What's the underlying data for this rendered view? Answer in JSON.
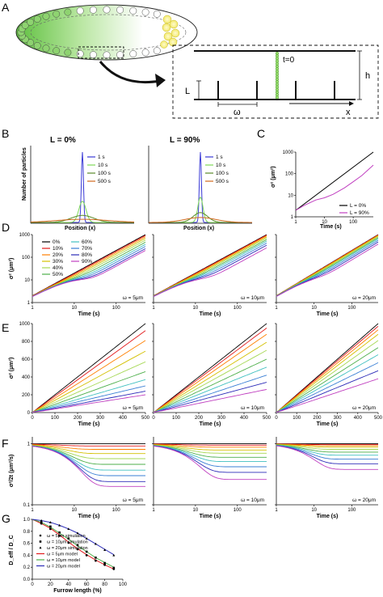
{
  "panels": {
    "a": "A",
    "b": "B",
    "c": "C",
    "d": "D",
    "e": "E",
    "f": "F",
    "g": "G"
  },
  "schematic": {
    "t0": "t=0",
    "L": "L",
    "h": "h",
    "omega": "ω",
    "x": "x"
  },
  "panel_b": {
    "ylabel": "Number of particles",
    "xlabel": "Position (x)",
    "left_title": "L = 0%",
    "right_title": "L = 90%",
    "legend": [
      "1 s",
      "10 s",
      "100 s",
      "500 s"
    ],
    "colors": [
      "#3b3bd6",
      "#7ed957",
      "#5a8a2a",
      "#d2691e"
    ]
  },
  "panel_c": {
    "ylabel": "σ² (μm²)",
    "xlabel": "Time (s)",
    "yticks": [
      "1000",
      "100",
      "10",
      "1"
    ],
    "xticks": [
      "1",
      "10",
      "100"
    ],
    "legend": [
      "L = 0%",
      "L = 90%"
    ]
  },
  "panel_d": {
    "ylabel": "σ² (μm²)",
    "xlabel": "Time (s)",
    "yticks": [
      "1000",
      "100",
      "10",
      "1"
    ],
    "xticks": [
      "1",
      "10",
      "100"
    ],
    "legend_col1": [
      "0%",
      "10%",
      "20%",
      "30%",
      "40%",
      "50%"
    ],
    "legend_col2": [
      "60%",
      "70%",
      "80%",
      "90%"
    ],
    "omegas": [
      "ω = 5μm",
      "ω = 10μm",
      "ω = 20μm"
    ]
  },
  "panel_e": {
    "ylabel": "σ² (μm²)",
    "xlabel": "Time (s)",
    "yticks": [
      "1000",
      "800",
      "600",
      "400",
      "200",
      "0"
    ],
    "xticks": [
      "0",
      "100",
      "200",
      "300",
      "400",
      "500"
    ],
    "omegas": [
      "ω = 5μm",
      "ω = 10μm",
      "ω = 20μm"
    ]
  },
  "panel_f": {
    "ylabel": "σ²/2t (μm²/s)",
    "xlabel": "Time (s)",
    "yticks": [
      "1",
      "0.1"
    ],
    "xticks": [
      "1",
      "10",
      "100"
    ],
    "omegas": [
      "ω = 5μm",
      "ω = 10μm",
      "ω = 20μm"
    ]
  },
  "panel_g": {
    "ylabel": "D_eff / D_C",
    "xlabel": "Furrow length (%)",
    "yticks": [
      "1.0",
      "0.8",
      "0.6",
      "0.4",
      "0.2",
      "0.0"
    ],
    "xticks": [
      "0",
      "20",
      "40",
      "60",
      "80",
      "100"
    ],
    "legend": [
      "ω = 5μm simulation",
      "ω = 10μm simulation",
      "ω = 20μm simulation",
      "ω = 5μm model",
      "ω = 10μm model",
      "ω = 20μm model"
    ]
  },
  "series_colors": [
    "#000000",
    "#e31a1c",
    "#ff7f00",
    "#d4c000",
    "#a6d854",
    "#4daf4a",
    "#41c0c0",
    "#3a7fd5",
    "#2b2bb8",
    "#c040c0"
  ],
  "model_colors": [
    "#e31a1c",
    "#4daf4a",
    "#2b2bb8"
  ],
  "chart_data": [
    {
      "type": "line",
      "panel": "B-left",
      "title": "L = 0%",
      "xlabel": "Position (x)",
      "ylabel": "Number of particles",
      "series": [
        {
          "name": "1 s",
          "peak": 1.0,
          "width": 0.02
        },
        {
          "name": "10 s",
          "peak": 0.3,
          "width": 0.07
        },
        {
          "name": "100 s",
          "peak": 0.1,
          "width": 0.22
        },
        {
          "name": "500 s",
          "peak": 0.045,
          "width": 0.5
        }
      ]
    },
    {
      "type": "line",
      "panel": "B-right",
      "title": "L = 90%",
      "xlabel": "Position (x)",
      "ylabel": "Number of particles",
      "series": [
        {
          "name": "1 s",
          "peak": 1.0,
          "width": 0.02
        },
        {
          "name": "10 s",
          "peak": 0.36,
          "width": 0.05
        },
        {
          "name": "100 s",
          "peak": 0.14,
          "width": 0.14
        },
        {
          "name": "500 s",
          "peak": 0.07,
          "width": 0.3
        }
      ]
    },
    {
      "type": "line",
      "panel": "C",
      "xlabel": "Time (s)",
      "ylabel": "σ² (μm²)",
      "xscale": "log",
      "yscale": "log",
      "xlim": [
        1,
        500
      ],
      "ylim": [
        1,
        1000
      ],
      "series": [
        {
          "name": "L = 0%",
          "x": [
            1,
            500
          ],
          "y": [
            2,
            1000
          ]
        },
        {
          "name": "L = 90%",
          "x": [
            1,
            2,
            5,
            10,
            20,
            50,
            100,
            200,
            500
          ],
          "y": [
            2,
            3.4,
            6,
            7.6,
            11,
            22,
            42,
            82,
            250
          ]
        }
      ]
    },
    {
      "type": "line",
      "panel": "D",
      "xlabel": "Time (s)",
      "ylabel": "σ² (μm²)",
      "xscale": "log",
      "yscale": "log",
      "legend": [
        "0%",
        "10%",
        "20%",
        "30%",
        "40%",
        "50%",
        "60%",
        "70%",
        "80%",
        "90%"
      ],
      "d_eff_ratio": {
        "ω = 5μm": [
          1.0,
          0.92,
          0.81,
          0.69,
          0.57,
          0.46,
          0.37,
          0.3,
          0.24,
          0.2
        ],
        "ω = 10μm": [
          1.0,
          0.95,
          0.88,
          0.79,
          0.7,
          0.6,
          0.51,
          0.42,
          0.34,
          0.26
        ],
        "ω = 20μm": [
          1.0,
          0.97,
          0.93,
          0.88,
          0.81,
          0.73,
          0.65,
          0.56,
          0.47,
          0.38
        ]
      }
    },
    {
      "type": "line",
      "panel": "E",
      "xlabel": "Time (s)",
      "ylabel": "σ² (μm²)",
      "xlim": [
        0,
        500
      ],
      "ylim": [
        0,
        1000
      ],
      "series_end_values_at_500s": {
        "ω = 5μm": [
          1000,
          920,
          810,
          690,
          570,
          460,
          370,
          300,
          240,
          200
        ],
        "ω = 10μm": [
          1000,
          950,
          880,
          790,
          700,
          600,
          510,
          420,
          340,
          260
        ],
        "ω = 20μm": [
          1000,
          970,
          930,
          880,
          810,
          730,
          650,
          560,
          470,
          380
        ]
      }
    },
    {
      "type": "line",
      "panel": "F",
      "xlabel": "Time (s)",
      "ylabel": "σ²/2t (μm²/s)",
      "xscale": "log",
      "yscale": "log",
      "ylim": [
        0.1,
        1.3
      ],
      "plateau_values": {
        "ω = 5μm": [
          1.0,
          0.92,
          0.81,
          0.69,
          0.57,
          0.46,
          0.37,
          0.3,
          0.24,
          0.2
        ],
        "ω = 10μm": [
          1.0,
          0.95,
          0.88,
          0.79,
          0.7,
          0.6,
          0.51,
          0.42,
          0.34,
          0.26
        ],
        "ω = 20μm": [
          1.0,
          0.97,
          0.93,
          0.88,
          0.81,
          0.73,
          0.65,
          0.56,
          0.47,
          0.38
        ]
      }
    },
    {
      "type": "scatter",
      "panel": "G",
      "xlabel": "Furrow length (%)",
      "ylabel": "D_eff / D_C",
      "xlim": [
        0,
        100
      ],
      "ylim": [
        0,
        1.0
      ],
      "x": [
        10,
        20,
        30,
        40,
        50,
        60,
        70,
        80,
        90
      ],
      "series": [
        {
          "name": "ω = 5μm simulation",
          "y": [
            0.93,
            0.84,
            0.73,
            0.61,
            0.5,
            0.4,
            0.31,
            0.24,
            0.17
          ]
        },
        {
          "name": "ω = 10μm simulation",
          "y": [
            0.95,
            0.88,
            0.78,
            0.68,
            0.57,
            0.46,
            0.36,
            0.27,
            0.19
          ]
        },
        {
          "name": "ω = 20μm simulation",
          "y": [
            0.98,
            0.95,
            0.9,
            0.84,
            0.77,
            0.68,
            0.59,
            0.49,
            0.4
          ]
        },
        {
          "name": "ω = 5μm model",
          "y": [
            0.93,
            0.85,
            0.74,
            0.62,
            0.51,
            0.41,
            0.32,
            0.24,
            0.17
          ]
        },
        {
          "name": "ω = 10μm model",
          "y": [
            0.95,
            0.87,
            0.77,
            0.67,
            0.56,
            0.46,
            0.36,
            0.28,
            0.2
          ]
        },
        {
          "name": "ω = 20μm model",
          "y": [
            0.98,
            0.95,
            0.9,
            0.84,
            0.77,
            0.68,
            0.59,
            0.5,
            0.41
          ]
        }
      ]
    }
  ]
}
